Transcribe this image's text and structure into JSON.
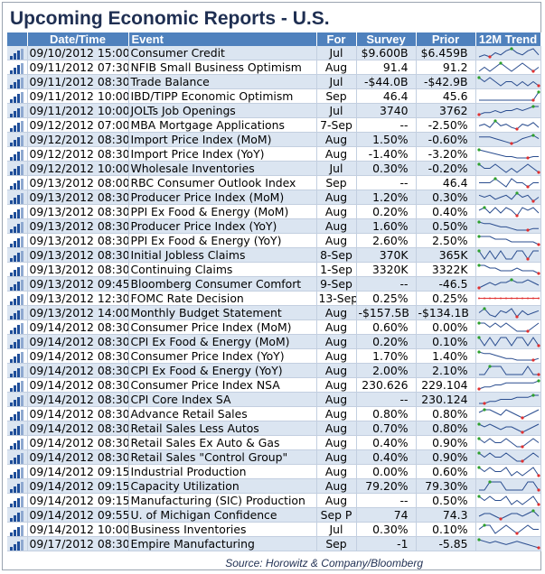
{
  "title": "Upcoming Economic Reports - U.S.",
  "source": "Source: Horowitz & Company/Bloomberg",
  "columns": {
    "date": "Date/Time",
    "event": "Event",
    "for": "For",
    "survey": "Survey",
    "prior": "Prior",
    "trend": "12M Trend"
  },
  "colors": {
    "header_bg": "#4f81bd",
    "band": "#dbe5f1",
    "spark_line": "#2a4d8f",
    "spark_low": "#e03030",
    "spark_high": "#2ca02c"
  },
  "icons": {
    "row_icon": "signal-bars-icon"
  },
  "rows": [
    {
      "datetime": "09/10/2012 15:00",
      "event": "Consumer Credit",
      "for": "Jul",
      "survey": "$9.600B",
      "prior": "$6.459B"
    },
    {
      "datetime": "09/11/2012 07:30",
      "event": "NFIB Small Business Optimism",
      "for": "Aug",
      "survey": "91.4",
      "prior": "91.2"
    },
    {
      "datetime": "09/11/2012 08:30",
      "event": "Trade Balance",
      "for": "Jul",
      "survey": "-$44.0B",
      "prior": "-$42.9B"
    },
    {
      "datetime": "09/11/2012 10:00",
      "event": "IBD/TIPP Economic Optimism",
      "for": "Sep",
      "survey": "46.4",
      "prior": "45.6"
    },
    {
      "datetime": "09/11/2012 10:00",
      "event": "JOLTs Job Openings",
      "for": "Jul",
      "survey": "3740",
      "prior": "3762"
    },
    {
      "datetime": "09/12/2012 07:00",
      "event": "MBA Mortgage Applications",
      "for": "7-Sep",
      "survey": "--",
      "prior": "-2.50%"
    },
    {
      "datetime": "09/12/2012 08:30",
      "event": "Import Price Index (MoM)",
      "for": "Aug",
      "survey": "1.50%",
      "prior": "-0.60%"
    },
    {
      "datetime": "09/12/2012 08:30",
      "event": "Import Price Index (YoY)",
      "for": "Aug",
      "survey": "-1.40%",
      "prior": "-3.20%"
    },
    {
      "datetime": "09/12/2012 10:00",
      "event": "Wholesale Inventories",
      "for": "Jul",
      "survey": "0.30%",
      "prior": "-0.20%"
    },
    {
      "datetime": "09/13/2012 08:00",
      "event": "RBC Consumer Outlook Index",
      "for": "Sep",
      "survey": "--",
      "prior": "46.4"
    },
    {
      "datetime": "09/13/2012 08:30",
      "event": "Producer Price Index (MoM)",
      "for": "Aug",
      "survey": "1.20%",
      "prior": "0.30%"
    },
    {
      "datetime": "09/13/2012 08:30",
      "event": "PPI Ex Food & Energy (MoM)",
      "for": "Aug",
      "survey": "0.20%",
      "prior": "0.40%"
    },
    {
      "datetime": "09/13/2012 08:30",
      "event": "Producer Price Index (YoY)",
      "for": "Aug",
      "survey": "1.60%",
      "prior": "0.50%"
    },
    {
      "datetime": "09/13/2012 08:30",
      "event": "PPI Ex Food & Energy (YoY)",
      "for": "Aug",
      "survey": "2.60%",
      "prior": "2.50%"
    },
    {
      "datetime": "09/13/2012 08:30",
      "event": "Initial Jobless Claims",
      "for": "8-Sep",
      "survey": "370K",
      "prior": "365K"
    },
    {
      "datetime": "09/13/2012 08:30",
      "event": "Continuing Claims",
      "for": "1-Sep",
      "survey": "3320K",
      "prior": "3322K"
    },
    {
      "datetime": "09/13/2012 09:45",
      "event": "Bloomberg Consumer Comfort",
      "for": "9-Sep",
      "survey": "--",
      "prior": "-46.5"
    },
    {
      "datetime": "09/13/2012 12:30",
      "event": "FOMC Rate Decision",
      "for": "13-Sep",
      "survey": "0.25%",
      "prior": "0.25%"
    },
    {
      "datetime": "09/13/2012 14:00",
      "event": "Monthly Budget Statement",
      "for": "Aug",
      "survey": "-$157.5B",
      "prior": "-$134.1B"
    },
    {
      "datetime": "09/14/2012 08:30",
      "event": "Consumer Price Index (MoM)",
      "for": "Aug",
      "survey": "0.60%",
      "prior": "0.00%"
    },
    {
      "datetime": "09/14/2012 08:30",
      "event": "CPI Ex Food & Energy (MoM)",
      "for": "Aug",
      "survey": "0.20%",
      "prior": "0.10%"
    },
    {
      "datetime": "09/14/2012 08:30",
      "event": "Consumer Price Index (YoY)",
      "for": "Aug",
      "survey": "1.70%",
      "prior": "1.40%"
    },
    {
      "datetime": "09/14/2012 08:30",
      "event": "CPI Ex Food & Energy (YoY)",
      "for": "Aug",
      "survey": "2.00%",
      "prior": "2.10%"
    },
    {
      "datetime": "09/14/2012 08:30",
      "event": "Consumer Price Index NSA",
      "for": "Aug",
      "survey": "230.626",
      "prior": "229.104"
    },
    {
      "datetime": "09/14/2012 08:30",
      "event": "CPI Core Index SA",
      "for": "Aug",
      "survey": "--",
      "prior": "230.124"
    },
    {
      "datetime": "09/14/2012 08:30",
      "event": "Advance Retail Sales",
      "for": "Aug",
      "survey": "0.80%",
      "prior": "0.80%"
    },
    {
      "datetime": "09/14/2012 08:30",
      "event": "Retail Sales Less Autos",
      "for": "Aug",
      "survey": "0.70%",
      "prior": "0.80%"
    },
    {
      "datetime": "09/14/2012 08:30",
      "event": "Retail Sales Ex Auto & Gas",
      "for": "Aug",
      "survey": "0.40%",
      "prior": "0.90%"
    },
    {
      "datetime": "09/14/2012 08:30",
      "event": "Retail Sales \"Control Group\"",
      "for": "Aug",
      "survey": "0.40%",
      "prior": "0.90%"
    },
    {
      "datetime": "09/14/2012 09:15",
      "event": "Industrial Production",
      "for": "Aug",
      "survey": "0.00%",
      "prior": "0.60%"
    },
    {
      "datetime": "09/14/2012 09:15",
      "event": "Capacity Utilization",
      "for": "Aug",
      "survey": "79.20%",
      "prior": "79.30%"
    },
    {
      "datetime": "09/14/2012 09:15",
      "event": "Manufacturing (SIC) Production",
      "for": "Aug",
      "survey": "--",
      "prior": "0.50%"
    },
    {
      "datetime": "09/14/2012 09:55",
      "event": "U. of Michigan Confidence",
      "for": "Sep P",
      "survey": "74",
      "prior": "74.3"
    },
    {
      "datetime": "09/14/2012 10:00",
      "event": "Business Inventories",
      "for": "Jul",
      "survey": "0.30%",
      "prior": "0.10%"
    },
    {
      "datetime": "09/17/2012 08:30",
      "event": "Empire Manufacturing",
      "for": "Sep",
      "survey": "-1",
      "prior": "-5.85"
    }
  ],
  "trends": [
    [
      5,
      6,
      5,
      7,
      6,
      8,
      9,
      7,
      6,
      8,
      9,
      6
    ],
    [
      5,
      6,
      5,
      6,
      7,
      6,
      5,
      6,
      7,
      6,
      5,
      6
    ],
    [
      7,
      6,
      7,
      6,
      5,
      6,
      6,
      5,
      6,
      5,
      6,
      5
    ],
    [
      0,
      0,
      0,
      0,
      0,
      0,
      0,
      0,
      0,
      0,
      0,
      5
    ],
    [
      3,
      4,
      4,
      5,
      4,
      5,
      5,
      6,
      5,
      6,
      7,
      7
    ],
    [
      5,
      6,
      4,
      8,
      5,
      6,
      4,
      3,
      6,
      5,
      7,
      4
    ],
    [
      6,
      6,
      6,
      5,
      4,
      3,
      2,
      3,
      5,
      6,
      7,
      5
    ],
    [
      8,
      7,
      6,
      5,
      4,
      3,
      3,
      2,
      2,
      2,
      3,
      3
    ],
    [
      6,
      5,
      5,
      6,
      5,
      4,
      5,
      4,
      5,
      6,
      5,
      4
    ],
    [
      5,
      5,
      5,
      6,
      5,
      4,
      6,
      5,
      5,
      4,
      5,
      5
    ],
    [
      6,
      5,
      6,
      4,
      5,
      6,
      4,
      7,
      5,
      6,
      3,
      5
    ],
    [
      5,
      6,
      4,
      6,
      4,
      6,
      5,
      3,
      6,
      5,
      6,
      4
    ],
    [
      8,
      7,
      7,
      6,
      5,
      5,
      4,
      3,
      3,
      3,
      4,
      4
    ],
    [
      7,
      7,
      7,
      6,
      6,
      6,
      5,
      5,
      5,
      5,
      5,
      4
    ],
    [
      6,
      5,
      6,
      5,
      6,
      5,
      5,
      6,
      6,
      5,
      6,
      6
    ],
    [
      7,
      7,
      6,
      6,
      5,
      5,
      5,
      6,
      5,
      5,
      5,
      4
    ],
    [
      3,
      4,
      5,
      4,
      5,
      5,
      6,
      5,
      5,
      6,
      5,
      4
    ],
    [
      5,
      5,
      5,
      5,
      5,
      5,
      5,
      5,
      5,
      5,
      5,
      5
    ],
    [
      5,
      7,
      4,
      3,
      6,
      5,
      7,
      3,
      6,
      4,
      5,
      6
    ],
    [
      6,
      6,
      5,
      6,
      5,
      6,
      5,
      4,
      4,
      4,
      5,
      6
    ],
    [
      6,
      4,
      6,
      4,
      6,
      6,
      4,
      6,
      6,
      4,
      6,
      4
    ],
    [
      8,
      7,
      7,
      6,
      5,
      4,
      4,
      3,
      3,
      3,
      3,
      4
    ],
    [
      5,
      5,
      6,
      6,
      6,
      5,
      5,
      5,
      5,
      6,
      5,
      5
    ],
    [
      3,
      4,
      4,
      5,
      5,
      6,
      6,
      6,
      6,
      6,
      6,
      7
    ],
    [
      3,
      3,
      4,
      4,
      5,
      5,
      5,
      6,
      6,
      6,
      7,
      7
    ],
    [
      5,
      6,
      6,
      5,
      4,
      6,
      5,
      4,
      3,
      4,
      5,
      6
    ],
    [
      6,
      5,
      6,
      5,
      4,
      5,
      5,
      4,
      3,
      4,
      5,
      6
    ],
    [
      6,
      5,
      6,
      5,
      5,
      6,
      5,
      4,
      4,
      5,
      6,
      5
    ],
    [
      6,
      5,
      6,
      5,
      5,
      6,
      5,
      4,
      4,
      5,
      6,
      5
    ],
    [
      6,
      5,
      6,
      5,
      5,
      6,
      4,
      5,
      4,
      5,
      6,
      4
    ],
    [
      5,
      5,
      6,
      6,
      6,
      5,
      5,
      5,
      5,
      6,
      6,
      5
    ],
    [
      6,
      5,
      6,
      5,
      5,
      6,
      4,
      5,
      4,
      5,
      6,
      4
    ],
    [
      5,
      6,
      6,
      5,
      4,
      5,
      6,
      6,
      5,
      6,
      7,
      5
    ],
    [
      5,
      6,
      6,
      4,
      5,
      6,
      5,
      4,
      5,
      6,
      5,
      5
    ],
    [
      7,
      6,
      5,
      6,
      5,
      4,
      5,
      6,
      5,
      4,
      3,
      2
    ]
  ]
}
